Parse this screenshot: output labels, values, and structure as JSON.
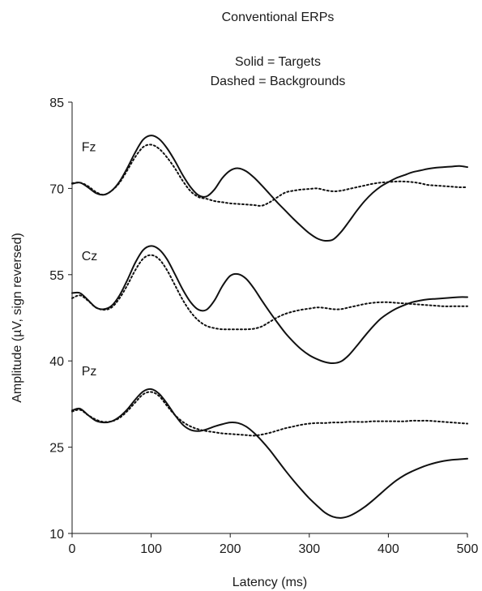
{
  "chart_data": {
    "type": "line",
    "title": "Conventional ERPs",
    "subtitle_lines": [
      "Solid = Targets",
      "Dashed = Backgrounds"
    ],
    "xlabel": "Latency (ms)",
    "ylabel": "Amplitude (µV, sign reversed)",
    "xlim": [
      0,
      500
    ],
    "ylim": [
      10,
      85
    ],
    "x_ticks": [
      0,
      100,
      200,
      300,
      400,
      500
    ],
    "y_ticks": [
      10,
      25,
      40,
      55,
      70,
      85
    ],
    "grid": false,
    "legend": "none",
    "x": [
      0,
      10,
      20,
      30,
      40,
      50,
      60,
      70,
      80,
      90,
      100,
      110,
      120,
      130,
      140,
      150,
      160,
      170,
      180,
      190,
      200,
      210,
      220,
      230,
      240,
      250,
      260,
      270,
      280,
      290,
      300,
      310,
      320,
      330,
      340,
      350,
      360,
      370,
      380,
      390,
      400,
      410,
      420,
      430,
      440,
      450,
      460,
      470,
      480,
      490,
      500
    ],
    "series": [
      {
        "name": "Fz",
        "style": "solid",
        "values": [
          70.8,
          71.0,
          70.2,
          69.2,
          68.9,
          69.6,
          71.2,
          73.6,
          76.3,
          78.5,
          79.2,
          78.6,
          77.0,
          74.8,
          72.3,
          70.2,
          68.8,
          68.6,
          69.8,
          71.8,
          73.1,
          73.5,
          73.0,
          71.9,
          70.5,
          69.0,
          67.5,
          66.1,
          64.7,
          63.4,
          62.2,
          61.3,
          60.9,
          61.1,
          62.4,
          64.2,
          66.1,
          67.8,
          69.2,
          70.3,
          71.1,
          71.8,
          72.3,
          72.8,
          73.1,
          73.4,
          73.6,
          73.7,
          73.8,
          73.9,
          73.7
        ]
      },
      {
        "name": "Fz",
        "style": "dashed",
        "values": [
          70.9,
          71.0,
          70.4,
          69.4,
          68.9,
          69.6,
          71.0,
          73.2,
          75.5,
          77.2,
          77.6,
          76.9,
          75.4,
          73.5,
          71.3,
          69.5,
          68.5,
          68.2,
          67.8,
          67.6,
          67.4,
          67.3,
          67.2,
          67.1,
          67.0,
          67.6,
          68.5,
          69.3,
          69.6,
          69.8,
          69.9,
          70.0,
          69.7,
          69.5,
          69.6,
          69.9,
          70.2,
          70.5,
          70.8,
          71.0,
          71.1,
          71.2,
          71.2,
          71.1,
          70.9,
          70.6,
          70.5,
          70.4,
          70.3,
          70.2,
          70.2
        ]
      },
      {
        "name": "Cz",
        "style": "solid",
        "values": [
          51.8,
          51.8,
          50.6,
          49.3,
          49.0,
          49.6,
          51.4,
          54.1,
          57.1,
          59.3,
          60.0,
          59.4,
          57.7,
          55.1,
          52.4,
          50.2,
          48.9,
          48.9,
          50.5,
          53.0,
          54.8,
          55.1,
          54.3,
          52.6,
          50.5,
          48.5,
          46.6,
          44.8,
          43.3,
          42.0,
          41.0,
          40.3,
          39.8,
          39.6,
          39.9,
          41.0,
          42.6,
          44.3,
          45.9,
          47.3,
          48.3,
          49.1,
          49.7,
          50.2,
          50.5,
          50.7,
          50.8,
          50.9,
          51.0,
          51.1,
          51.1
        ]
      },
      {
        "name": "Cz",
        "style": "dashed",
        "values": [
          50.9,
          51.4,
          50.5,
          49.3,
          48.9,
          49.3,
          50.9,
          53.2,
          55.8,
          57.8,
          58.4,
          57.7,
          55.8,
          53.2,
          50.6,
          48.5,
          47.0,
          46.1,
          45.7,
          45.5,
          45.5,
          45.5,
          45.5,
          45.6,
          46.0,
          46.8,
          47.6,
          48.2,
          48.6,
          48.9,
          49.1,
          49.3,
          49.2,
          49.0,
          49.0,
          49.3,
          49.6,
          49.9,
          50.1,
          50.2,
          50.2,
          50.1,
          50.0,
          49.9,
          49.8,
          49.7,
          49.6,
          49.5,
          49.5,
          49.5,
          49.5
        ]
      },
      {
        "name": "Pz",
        "style": "solid",
        "values": [
          31.4,
          31.7,
          30.6,
          29.6,
          29.3,
          29.5,
          30.3,
          31.6,
          33.3,
          34.7,
          35.1,
          34.3,
          32.6,
          30.6,
          28.9,
          28.0,
          27.8,
          28.1,
          28.6,
          29.0,
          29.3,
          29.2,
          28.6,
          27.5,
          26.1,
          24.5,
          22.7,
          20.9,
          19.2,
          17.6,
          16.1,
          14.8,
          13.6,
          12.9,
          12.7,
          13.0,
          13.7,
          14.6,
          15.7,
          16.9,
          18.1,
          19.2,
          20.1,
          20.8,
          21.4,
          21.9,
          22.3,
          22.6,
          22.8,
          22.9,
          23.0
        ]
      },
      {
        "name": "Pz",
        "style": "dashed",
        "values": [
          31.2,
          31.5,
          30.6,
          29.8,
          29.4,
          29.5,
          30.1,
          31.3,
          32.8,
          34.2,
          34.6,
          33.9,
          32.2,
          30.6,
          29.4,
          28.6,
          28.1,
          27.8,
          27.6,
          27.4,
          27.3,
          27.2,
          27.1,
          27.0,
          27.2,
          27.5,
          27.9,
          28.3,
          28.6,
          28.9,
          29.1,
          29.2,
          29.2,
          29.3,
          29.3,
          29.4,
          29.4,
          29.4,
          29.5,
          29.5,
          29.5,
          29.5,
          29.5,
          29.6,
          29.6,
          29.6,
          29.5,
          29.4,
          29.3,
          29.2,
          29.1
        ]
      }
    ],
    "annotations": [
      {
        "text": "Fz",
        "x": 12,
        "y": 76.5
      },
      {
        "text": "Cz",
        "x": 12,
        "y": 57.5
      },
      {
        "text": "Pz",
        "x": 12,
        "y": 37.5
      }
    ]
  }
}
